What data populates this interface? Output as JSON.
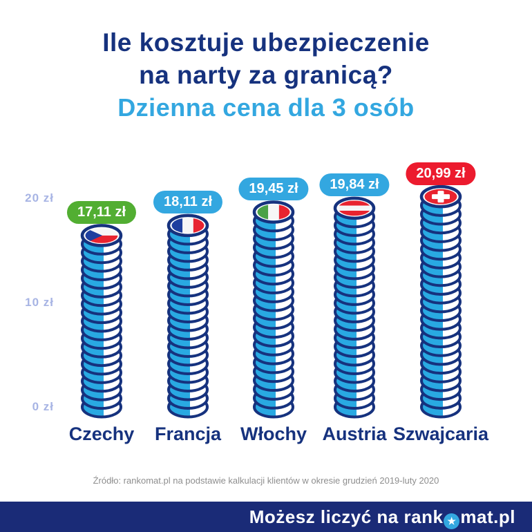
{
  "header": {
    "title_line1": "Ile kosztuje ubezpieczenie",
    "title_line2": "na narty za granicą?",
    "subtitle": "Dzienna cena dla 3 osób"
  },
  "chart_data": {
    "type": "bar",
    "title": "Ile kosztuje ubezpieczenie na narty za granicą?",
    "subtitle": "Dzienna cena dla 3 osób",
    "categories": [
      "Czechy",
      "Francja",
      "Włochy",
      "Austria",
      "Szwajcaria"
    ],
    "values": [
      17.11,
      18.11,
      19.45,
      19.84,
      20.99
    ],
    "value_labels": [
      "17,11 zł",
      "18,11 zł",
      "19,45 zł",
      "19,84 zł",
      "20,99 zł"
    ],
    "badge_colors": [
      "#52ae32",
      "#33a7e0",
      "#33a7e0",
      "#33a7e0",
      "#ec1b2e"
    ],
    "flags": [
      "cz",
      "fr",
      "it",
      "at",
      "ch"
    ],
    "ylabel_ticks": [
      "20 zł",
      "10 zł",
      "0 zł"
    ],
    "tick_values": [
      20,
      10,
      0
    ],
    "ylim": [
      0,
      22
    ],
    "unit": "zł",
    "legend": "none",
    "grid": "off"
  },
  "footer": {
    "source": "Źródło: rankomat.pl na podstawie kalkulacji klientów w okresie grudzień 2019-luty 2020"
  },
  "footer_bar": {
    "text_before_star": "Możesz liczyć na rank",
    "text_after_star": "mat.pl",
    "star_icon": "★"
  },
  "colors": {
    "navy": "#16327e",
    "bar_navy": "#1a2b77",
    "light_blue": "#33a7e0",
    "coin_blue": "#29a9e2",
    "green": "#52ae32",
    "red": "#ec1b2e",
    "axis_label": "#a7b4e4",
    "source_gray": "#8e8e8e",
    "flag_blue": "#1e3f9f",
    "flag_red": "#e8232f",
    "flag_green": "#4aa147",
    "flag_white": "#f6f6f6"
  }
}
